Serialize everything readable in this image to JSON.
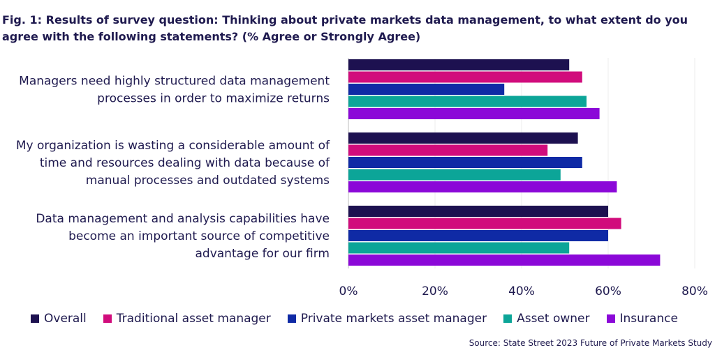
{
  "title": "Fig. 1: Results of survey question: Thinking about private markets data management, to what extent do you agree with the following statements? (% Agree or Strongly Agree)",
  "source": "Source: State Street 2023 Future of Private Markets Study",
  "chart_data": {
    "type": "bar",
    "orientation": "horizontal",
    "title": "Fig. 1: Results of survey question: Thinking about private markets data management, to what extent do you agree with the following statements? (% Agree or Strongly Agree)",
    "categories": [
      [
        "Managers need highly structured data management",
        "processes in order to maximize returns"
      ],
      [
        "My organization is wasting a considerable amount of",
        "time and resources dealing with data because of",
        "manual processes and outdated systems"
      ],
      [
        "Data management and analysis capabilities have",
        "become an important source of competitive",
        "advantage for our firm"
      ]
    ],
    "series": [
      {
        "name": "Overall",
        "color": "#1d1150",
        "values": [
          51,
          53,
          60
        ]
      },
      {
        "name": "Traditional asset manager",
        "color": "#d10c7c",
        "values": [
          54,
          46,
          63
        ]
      },
      {
        "name": "Private markets asset manager",
        "color": "#0f2aa5",
        "values": [
          36,
          54,
          60
        ]
      },
      {
        "name": "Asset owner",
        "color": "#0ca598",
        "values": [
          55,
          49,
          51
        ]
      },
      {
        "name": "Insurance",
        "color": "#8b08d8",
        "values": [
          58,
          62,
          72
        ]
      }
    ],
    "xlim": [
      0,
      80
    ],
    "xticks": [
      0,
      20,
      40,
      60,
      80
    ],
    "tick_labels": [
      "0%",
      "20%",
      "40%",
      "60%",
      "80%"
    ],
    "xlabel": "",
    "ylabel": "",
    "grid": true,
    "legend_position": "bottom"
  }
}
